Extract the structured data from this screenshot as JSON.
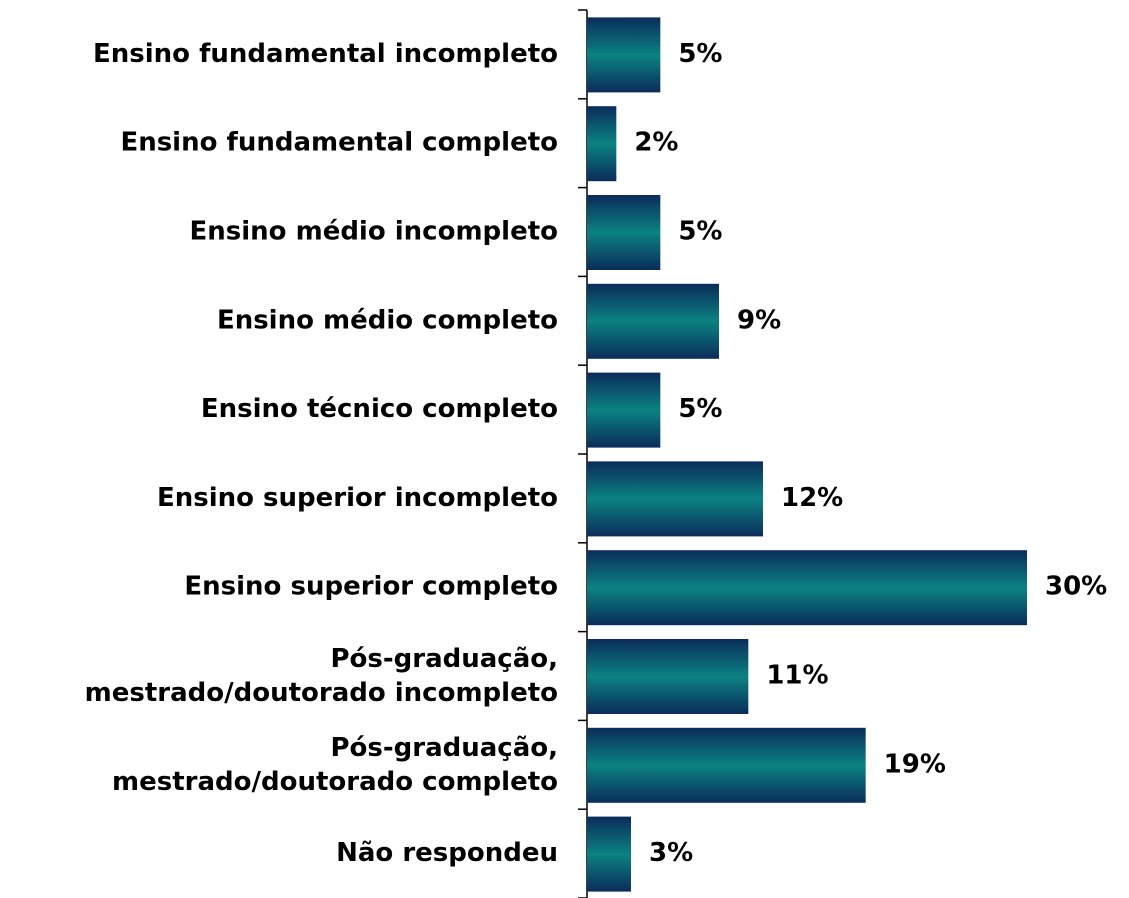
{
  "chart_data": {
    "type": "bar",
    "orientation": "horizontal",
    "categories": [
      "Ensino fundamental incompleto",
      "Ensino fundamental completo",
      "Ensino médio incompleto",
      "Ensino médio completo",
      "Ensino técnico completo",
      "Ensino superior incompleto",
      "Ensino superior completo",
      "Pós-graduação,\nmestrado/doutorado incompleto",
      "Pós-graduação,\nmestrado/doutorado completo",
      "Não respondeu"
    ],
    "values": [
      5,
      2,
      5,
      9,
      5,
      12,
      30,
      11,
      19,
      3
    ],
    "value_labels": [
      "5%",
      "2%",
      "5%",
      "9%",
      "5%",
      "12%",
      "30%",
      "11%",
      "19%",
      "3%"
    ],
    "color": [
      "#0b2c5a",
      "#0b8282"
    ]
  }
}
